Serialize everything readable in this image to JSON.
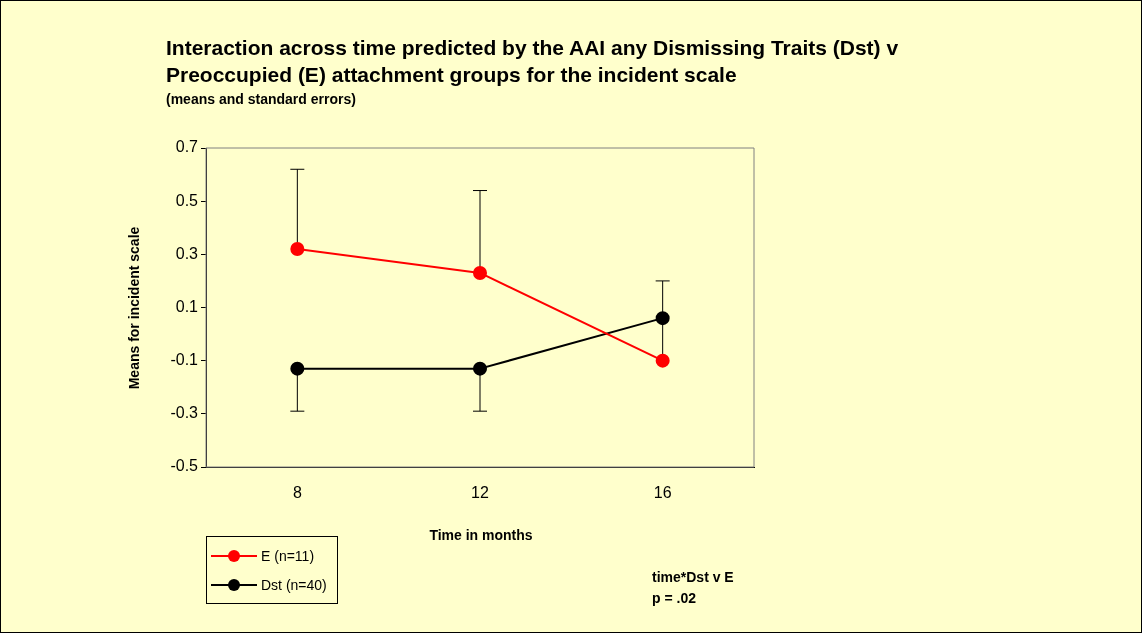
{
  "chart_data": {
    "type": "line",
    "title": "Interaction across time predicted by the AAI any Dismissing Traits (Dst) v Preoccupied (E) attachment groups for the incident scale",
    "subtitle": "(means and standard errors)",
    "xlabel": "Time in months",
    "ylabel": "Means for incident scale",
    "categories": [
      "8",
      "12",
      "16"
    ],
    "series": [
      {
        "name": "E (n=11)",
        "color": "#ff0000",
        "values": [
          0.32,
          0.23,
          -0.1
        ],
        "errors": [
          [
            0.32,
            0.62
          ],
          [
            0.23,
            0.54
          ],
          [
            -0.1,
            0.2
          ]
        ]
      },
      {
        "name": "Dst (n=40)",
        "color": "#000000",
        "values": [
          -0.13,
          -0.13,
          0.06
        ],
        "errors": [
          [
            -0.29,
            -0.13
          ],
          [
            -0.29,
            -0.13
          ],
          null
        ]
      }
    ],
    "ylim": [
      -0.5,
      0.7
    ],
    "yticks": [
      -0.5,
      -0.3,
      -0.1,
      0.1,
      0.3,
      0.5,
      0.7
    ],
    "grid": false,
    "legend": "bottom left",
    "marker": "circle",
    "line_style": "solid",
    "annotations": [
      "time*Dst v E\np = .02"
    ]
  }
}
